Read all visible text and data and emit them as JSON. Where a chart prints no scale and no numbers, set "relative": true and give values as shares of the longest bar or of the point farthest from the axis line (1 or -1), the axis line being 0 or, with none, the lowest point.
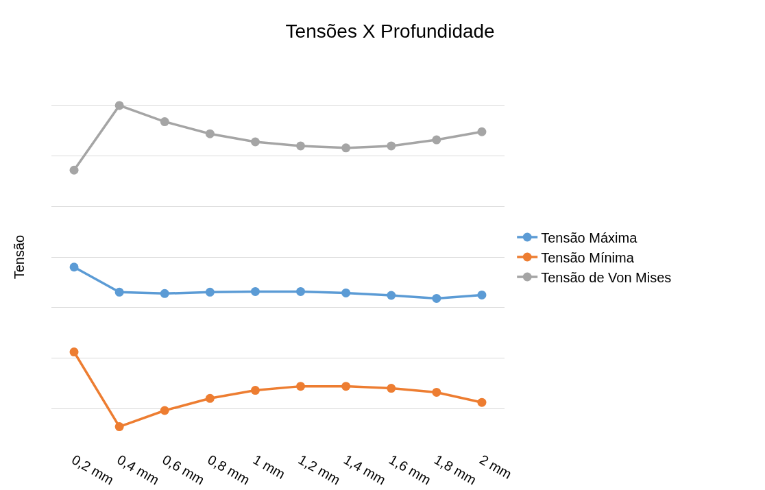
{
  "chart_data": {
    "type": "line",
    "title": "Tensões X Profundidade",
    "ylabel": "Tensão",
    "relative": true,
    "grid": "y",
    "legend": "right",
    "marker": "circle",
    "line_style": "solid",
    "categories": [
      "0,2 mm",
      "0,4 mm",
      "0,6 mm",
      "0,8 mm",
      "1 mm",
      "1,2 mm",
      "1,4 mm",
      "1,6 mm",
      "1,8 mm",
      "2 mm"
    ],
    "series": [
      {
        "name": "Tensão Máxima",
        "color": "#5b9bd5",
        "values": [
          0.2,
          0.076,
          0.069,
          0.076,
          0.079,
          0.079,
          0.072,
          0.06,
          0.045,
          0.062
        ]
      },
      {
        "name": "Tensão Mínima",
        "color": "#ed7d31",
        "values": [
          -0.22,
          -0.59,
          -0.51,
          -0.45,
          -0.41,
          -0.39,
          -0.39,
          -0.4,
          -0.42,
          -0.47
        ]
      },
      {
        "name": "Tensão de Von Mises",
        "color": "#a5a5a5",
        "values": [
          0.68,
          1,
          0.92,
          0.86,
          0.82,
          0.8,
          0.79,
          0.8,
          0.83,
          0.87
        ]
      }
    ]
  }
}
